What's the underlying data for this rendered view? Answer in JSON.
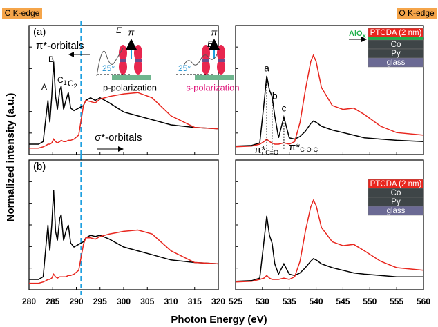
{
  "y_label": "Normalized intensity (a.u.)",
  "x_label": "Photon Energy (eV)",
  "chart_data": [
    {
      "type": "line",
      "panel_label": "(a)",
      "edge_label": "C K-edge",
      "xlim": [
        280,
        320
      ],
      "ylim": [
        0,
        1
      ],
      "marker_x": 291,
      "marker_color": "#1ea0e0",
      "x": [
        280,
        282,
        283,
        283.6,
        284,
        284.4,
        284.8,
        285.2,
        285.6,
        286,
        286.5,
        286.8,
        287.3,
        287.8,
        288.3,
        288.8,
        289.5,
        290.5,
        291.5,
        292,
        293,
        294,
        295,
        297,
        300,
        303,
        306,
        310,
        315,
        320
      ],
      "series": [
        {
          "color": "#000000",
          "values": [
            0.08,
            0.08,
            0.1,
            0.3,
            0.42,
            0.25,
            0.45,
            0.72,
            0.45,
            0.35,
            0.5,
            0.53,
            0.35,
            0.42,
            0.48,
            0.36,
            0.34,
            0.36,
            0.38,
            0.42,
            0.44,
            0.42,
            0.44,
            0.4,
            0.33,
            0.3,
            0.27,
            0.23,
            0.21,
            0.2
          ]
        },
        {
          "color": "#e8261e",
          "values": [
            0.05,
            0.05,
            0.06,
            0.07,
            0.08,
            0.08,
            0.09,
            0.12,
            0.1,
            0.09,
            0.1,
            0.11,
            0.1,
            0.1,
            0.11,
            0.11,
            0.12,
            0.15,
            0.38,
            0.42,
            0.41,
            0.4,
            0.43,
            0.45,
            0.47,
            0.48,
            0.44,
            0.3,
            0.21,
            0.2
          ]
        }
      ],
      "annotations": {
        "pi_orbitals": "π*-orbitals",
        "sigma_orbitals": "σ*-orbitals",
        "A": "A",
        "B": "B",
        "C1": {
          "main": "C",
          "sub": "1"
        },
        "C2": {
          "main": "C",
          "sub": "2"
        },
        "p_pol": "p-polarization",
        "s_pol": "s-polarization",
        "angle": "25°",
        "vec_E": "E",
        "vec_pi": "π"
      }
    },
    {
      "type": "line",
      "edge_label": "O K-edge",
      "xlim": [
        525,
        560
      ],
      "ylim": [
        0,
        1
      ],
      "x": [
        525,
        528,
        529.5,
        530.3,
        530.8,
        531.3,
        531.8,
        532.3,
        533,
        534,
        535,
        536,
        537,
        538,
        539,
        539.5,
        540,
        541,
        543,
        545,
        547,
        549,
        552,
        555,
        560
      ],
      "series": [
        {
          "color": "#000000",
          "values": [
            0.065,
            0.07,
            0.09,
            0.4,
            0.61,
            0.5,
            0.45,
            0.3,
            0.13,
            0.29,
            0.13,
            0.12,
            0.14,
            0.18,
            0.24,
            0.26,
            0.25,
            0.22,
            0.19,
            0.17,
            0.15,
            0.13,
            0.12,
            0.11,
            0.1
          ]
        },
        {
          "color": "#e8261e",
          "values": [
            0.06,
            0.065,
            0.08,
            0.1,
            0.12,
            0.1,
            0.09,
            0.08,
            0.08,
            0.09,
            0.08,
            0.1,
            0.25,
            0.5,
            0.72,
            0.77,
            0.72,
            0.52,
            0.38,
            0.35,
            0.36,
            0.31,
            0.22,
            0.17,
            0.15
          ]
        }
      ],
      "annotations": {
        "a": "a",
        "b": "b",
        "c": "c",
        "pi_CO": {
          "main": "π*",
          "sub": "C=O"
        },
        "pi_COC": {
          "main": "π*",
          "sub": "C-O-C"
        }
      },
      "stack": {
        "cap": {
          "main": "AlO",
          "sub": "x"
        },
        "layers": [
          "PTCDA (2 nm)",
          "Co",
          "Py",
          "glass"
        ]
      }
    },
    {
      "type": "line",
      "panel_label": "(b)",
      "xlim": [
        280,
        320
      ],
      "ylim": [
        0,
        1
      ],
      "marker_x": 291,
      "marker_color": "#1ea0e0",
      "xticks": [
        280,
        285,
        290,
        295,
        300,
        305,
        310,
        315,
        320
      ],
      "x": [
        280,
        282,
        283,
        283.6,
        284,
        284.4,
        284.8,
        285.2,
        285.6,
        286,
        286.5,
        286.8,
        287.3,
        287.8,
        288.3,
        288.8,
        289.5,
        290.5,
        291.5,
        292,
        293,
        294,
        295,
        297,
        300,
        303,
        306,
        310,
        315,
        320
      ],
      "series": [
        {
          "color": "#000000",
          "values": [
            0.08,
            0.08,
            0.1,
            0.35,
            0.5,
            0.3,
            0.5,
            0.77,
            0.45,
            0.38,
            0.55,
            0.58,
            0.38,
            0.45,
            0.5,
            0.36,
            0.33,
            0.35,
            0.37,
            0.4,
            0.42,
            0.41,
            0.42,
            0.39,
            0.33,
            0.3,
            0.27,
            0.23,
            0.21,
            0.2
          ]
        },
        {
          "color": "#e8261e",
          "values": [
            0.05,
            0.05,
            0.06,
            0.07,
            0.08,
            0.08,
            0.09,
            0.12,
            0.1,
            0.09,
            0.1,
            0.1,
            0.1,
            0.1,
            0.11,
            0.11,
            0.12,
            0.15,
            0.35,
            0.4,
            0.4,
            0.39,
            0.41,
            0.43,
            0.45,
            0.46,
            0.43,
            0.3,
            0.21,
            0.2
          ]
        }
      ]
    },
    {
      "type": "line",
      "xlim": [
        525,
        560
      ],
      "ylim": [
        0,
        1
      ],
      "xticks": [
        525,
        530,
        535,
        540,
        545,
        550,
        555,
        560
      ],
      "x": [
        525,
        528,
        529.5,
        530.3,
        530.8,
        531.3,
        531.8,
        532.3,
        533,
        534,
        535,
        536,
        537,
        538,
        539,
        539.5,
        540,
        541,
        543,
        545,
        547,
        549,
        552,
        555,
        560
      ],
      "series": [
        {
          "color": "#000000",
          "values": [
            0.065,
            0.07,
            0.09,
            0.38,
            0.57,
            0.42,
            0.36,
            0.2,
            0.12,
            0.2,
            0.12,
            0.11,
            0.13,
            0.17,
            0.22,
            0.24,
            0.23,
            0.2,
            0.17,
            0.15,
            0.13,
            0.12,
            0.11,
            0.1,
            0.1
          ]
        },
        {
          "color": "#e8261e",
          "values": [
            0.06,
            0.065,
            0.08,
            0.09,
            0.11,
            0.09,
            0.08,
            0.08,
            0.08,
            0.09,
            0.08,
            0.1,
            0.22,
            0.45,
            0.64,
            0.69,
            0.65,
            0.48,
            0.37,
            0.34,
            0.35,
            0.3,
            0.22,
            0.17,
            0.15
          ]
        }
      ],
      "stack": {
        "layers": [
          "PTCDA (2 nm)",
          "Co",
          "Py",
          "glass"
        ]
      }
    }
  ]
}
